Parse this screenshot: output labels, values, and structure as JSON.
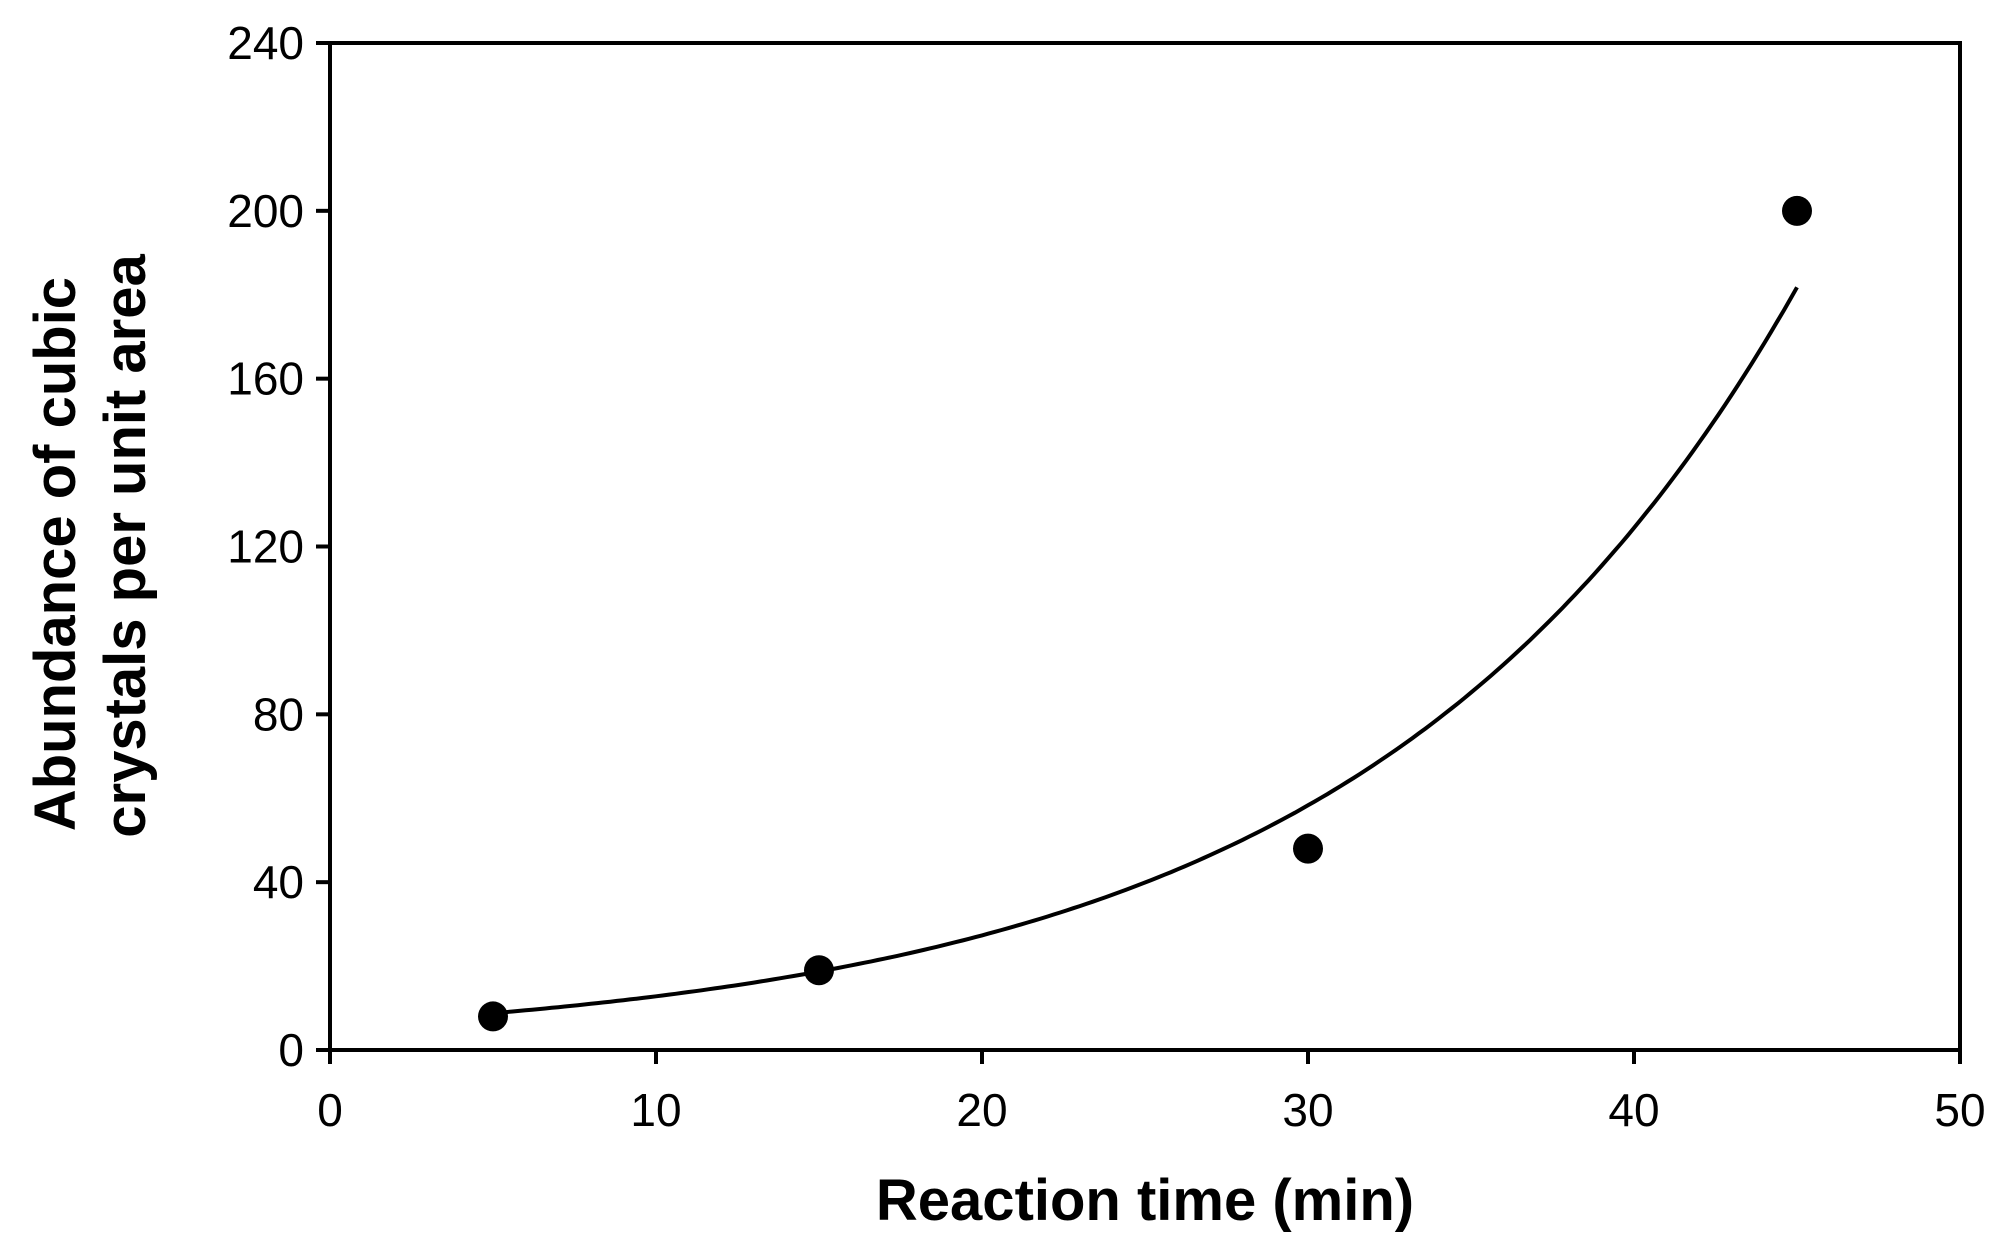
{
  "chart_data": {
    "type": "scatter",
    "title": "",
    "xlabel": "Reaction time (min)",
    "ylabel_lines": [
      "Abundance of cubic",
      "crystals per unit area"
    ],
    "xlim": [
      0,
      50
    ],
    "ylim": [
      0,
      240
    ],
    "x_ticks": [
      0,
      10,
      20,
      30,
      40,
      50
    ],
    "y_ticks": [
      0,
      40,
      80,
      120,
      160,
      200,
      240
    ],
    "grid": false,
    "legend": "none",
    "series": [
      {
        "x": [
          5,
          15,
          30,
          45
        ],
        "y": [
          8,
          19,
          48,
          200
        ]
      }
    ],
    "trendline": {
      "type": "exponential",
      "a": 6.0,
      "b": 0.0758,
      "x_range": [
        5,
        45
      ]
    },
    "colors": {
      "marker": "#000000",
      "line": "#000000",
      "axis": "#000000"
    }
  }
}
